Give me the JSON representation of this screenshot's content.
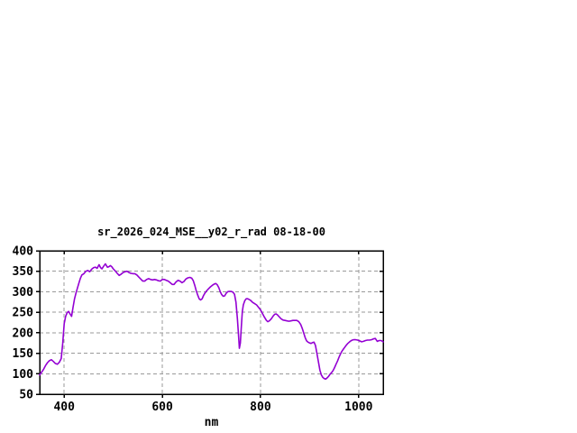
{
  "page": {
    "background": "#ffffff"
  },
  "chart_data": {
    "type": "line",
    "title": "sr_2026_024_MSE__y02_r_rad 08-18-00",
    "xlabel": "nm",
    "ylabel": "",
    "xlim": [
      350,
      1050
    ],
    "ylim": [
      50,
      400
    ],
    "x_tick_values": [
      400,
      600,
      800,
      1000
    ],
    "y_tick_values": [
      50,
      100,
      150,
      200,
      250,
      300,
      350,
      400
    ],
    "grid": true,
    "legend_position": "none",
    "colors": {
      "line": "#9400d3",
      "grid": "#9a9a9a",
      "border": "#000000",
      "text": "#000000",
      "background": "#ffffff"
    },
    "series": [
      {
        "points": [
          [
            350,
            97
          ],
          [
            354,
            104
          ],
          [
            358,
            111
          ],
          [
            362,
            120
          ],
          [
            366,
            127
          ],
          [
            370,
            132
          ],
          [
            374,
            134
          ],
          [
            378,
            130
          ],
          [
            382,
            125
          ],
          [
            386,
            123
          ],
          [
            390,
            128
          ],
          [
            394,
            137
          ],
          [
            397,
            175
          ],
          [
            400,
            222
          ],
          [
            403,
            240
          ],
          [
            406,
            249
          ],
          [
            409,
            252
          ],
          [
            412,
            246
          ],
          [
            415,
            240
          ],
          [
            418,
            262
          ],
          [
            421,
            282
          ],
          [
            424,
            297
          ],
          [
            427,
            309
          ],
          [
            430,
            321
          ],
          [
            433,
            333
          ],
          [
            436,
            341
          ],
          [
            440,
            344
          ],
          [
            444,
            350
          ],
          [
            448,
            352
          ],
          [
            452,
            349
          ],
          [
            456,
            355
          ],
          [
            460,
            359
          ],
          [
            464,
            360
          ],
          [
            467,
            357
          ],
          [
            471,
            366
          ],
          [
            474,
            359
          ],
          [
            477,
            356
          ],
          [
            480,
            362
          ],
          [
            484,
            368
          ],
          [
            488,
            360
          ],
          [
            491,
            361
          ],
          [
            494,
            364
          ],
          [
            497,
            361
          ],
          [
            500,
            356
          ],
          [
            504,
            351
          ],
          [
            508,
            345
          ],
          [
            512,
            340
          ],
          [
            516,
            343
          ],
          [
            520,
            347
          ],
          [
            524,
            349
          ],
          [
            528,
            350
          ],
          [
            532,
            347
          ],
          [
            536,
            345
          ],
          [
            540,
            344
          ],
          [
            544,
            344
          ],
          [
            548,
            341
          ],
          [
            552,
            336
          ],
          [
            556,
            331
          ],
          [
            560,
            326
          ],
          [
            564,
            326
          ],
          [
            568,
            330
          ],
          [
            572,
            332
          ],
          [
            576,
            330
          ],
          [
            580,
            329
          ],
          [
            584,
            330
          ],
          [
            588,
            329
          ],
          [
            592,
            327
          ],
          [
            596,
            326
          ],
          [
            600,
            330
          ],
          [
            604,
            330
          ],
          [
            608,
            328
          ],
          [
            612,
            326
          ],
          [
            616,
            322
          ],
          [
            620,
            318
          ],
          [
            624,
            318
          ],
          [
            628,
            324
          ],
          [
            632,
            328
          ],
          [
            636,
            326
          ],
          [
            640,
            322
          ],
          [
            644,
            325
          ],
          [
            648,
            331
          ],
          [
            652,
            334
          ],
          [
            656,
            335
          ],
          [
            660,
            333
          ],
          [
            663,
            327
          ],
          [
            666,
            316
          ],
          [
            669,
            303
          ],
          [
            672,
            292
          ],
          [
            675,
            283
          ],
          [
            678,
            280
          ],
          [
            681,
            283
          ],
          [
            684,
            291
          ],
          [
            687,
            297
          ],
          [
            690,
            302
          ],
          [
            694,
            307
          ],
          [
            698,
            312
          ],
          [
            702,
            316
          ],
          [
            706,
            319
          ],
          [
            709,
            320
          ],
          [
            712,
            317
          ],
          [
            715,
            310
          ],
          [
            718,
            300
          ],
          [
            721,
            293
          ],
          [
            724,
            289
          ],
          [
            727,
            290
          ],
          [
            730,
            296
          ],
          [
            733,
            300
          ],
          [
            736,
            301
          ],
          [
            740,
            301
          ],
          [
            744,
            299
          ],
          [
            747,
            294
          ],
          [
            750,
            275
          ],
          [
            753,
            235
          ],
          [
            755,
            200
          ],
          [
            757,
            162
          ],
          [
            759,
            175
          ],
          [
            761,
            215
          ],
          [
            763,
            252
          ],
          [
            765,
            268
          ],
          [
            768,
            278
          ],
          [
            771,
            283
          ],
          [
            774,
            283
          ],
          [
            777,
            281
          ],
          [
            780,
            279
          ],
          [
            784,
            274
          ],
          [
            788,
            271
          ],
          [
            792,
            268
          ],
          [
            796,
            262
          ],
          [
            800,
            256
          ],
          [
            804,
            247
          ],
          [
            808,
            238
          ],
          [
            812,
            230
          ],
          [
            815,
            227
          ],
          [
            818,
            229
          ],
          [
            822,
            234
          ],
          [
            826,
            241
          ],
          [
            829,
            245
          ],
          [
            832,
            246
          ],
          [
            835,
            243
          ],
          [
            838,
            239
          ],
          [
            842,
            234
          ],
          [
            846,
            231
          ],
          [
            850,
            230
          ],
          [
            854,
            229
          ],
          [
            858,
            228
          ],
          [
            862,
            229
          ],
          [
            866,
            230
          ],
          [
            870,
            230
          ],
          [
            874,
            230
          ],
          [
            878,
            227
          ],
          [
            882,
            220
          ],
          [
            885,
            211
          ],
          [
            888,
            200
          ],
          [
            891,
            188
          ],
          [
            894,
            180
          ],
          [
            897,
            177
          ],
          [
            900,
            175
          ],
          [
            903,
            174
          ],
          [
            906,
            176
          ],
          [
            909,
            177
          ],
          [
            912,
            169
          ],
          [
            915,
            150
          ],
          [
            918,
            129
          ],
          [
            921,
            109
          ],
          [
            924,
            97
          ],
          [
            927,
            91
          ],
          [
            930,
            88
          ],
          [
            933,
            87
          ],
          [
            936,
            90
          ],
          [
            939,
            94
          ],
          [
            942,
            99
          ],
          [
            945,
            103
          ],
          [
            948,
            108
          ],
          [
            951,
            115
          ],
          [
            954,
            123
          ],
          [
            957,
            131
          ],
          [
            960,
            140
          ],
          [
            963,
            148
          ],
          [
            966,
            155
          ],
          [
            969,
            160
          ],
          [
            972,
            165
          ],
          [
            975,
            170
          ],
          [
            978,
            174
          ],
          [
            981,
            177
          ],
          [
            984,
            180
          ],
          [
            987,
            182
          ],
          [
            990,
            183
          ],
          [
            994,
            183
          ],
          [
            998,
            182
          ],
          [
            1002,
            180
          ],
          [
            1006,
            178
          ],
          [
            1010,
            179
          ],
          [
            1014,
            181
          ],
          [
            1018,
            182
          ],
          [
            1022,
            182
          ],
          [
            1026,
            183
          ],
          [
            1030,
            185
          ],
          [
            1034,
            186
          ],
          [
            1038,
            179
          ],
          [
            1042,
            181
          ],
          [
            1046,
            181
          ],
          [
            1050,
            178
          ]
        ]
      }
    ]
  }
}
